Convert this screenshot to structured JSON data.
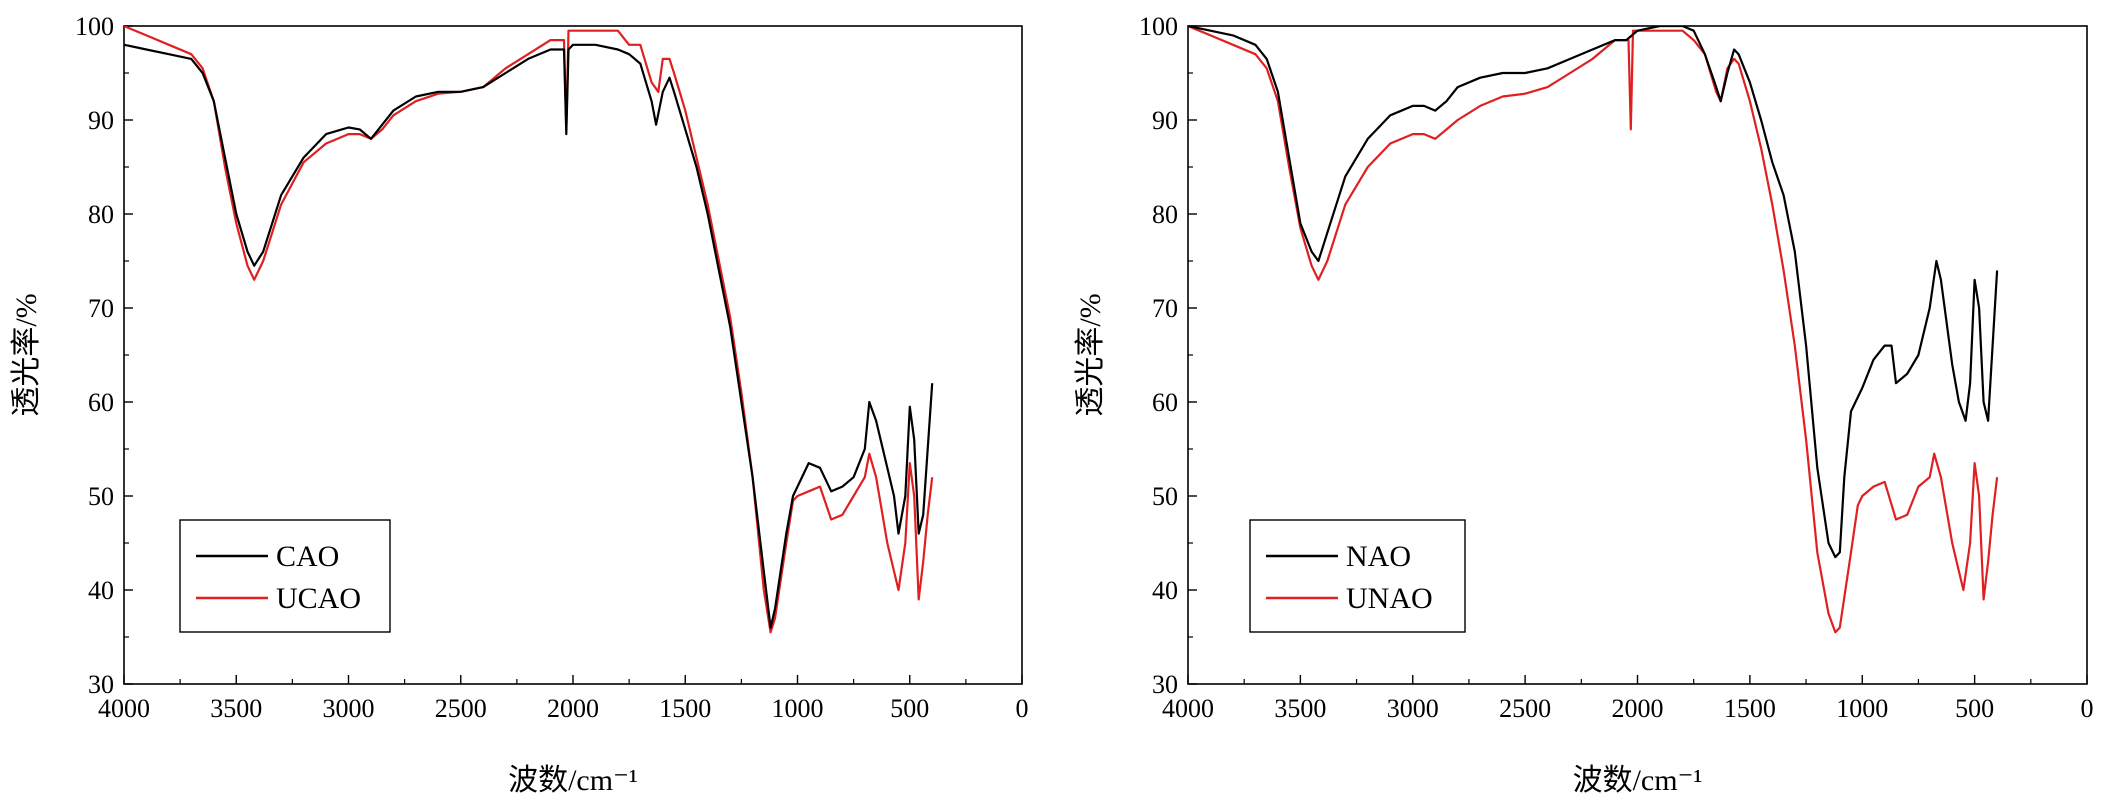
{
  "chart_data": [
    {
      "type": "line",
      "xlabel": "波数/cm⁻¹",
      "ylabel": "透光率/%",
      "xlim": [
        4000,
        0
      ],
      "ylim": [
        30,
        100
      ],
      "xticks": [
        "4000",
        "3500",
        "3000",
        "2500",
        "2000",
        "1500",
        "1000",
        "500",
        "0"
      ],
      "yticks": [
        "30",
        "40",
        "50",
        "60",
        "70",
        "80",
        "90",
        "100"
      ],
      "legend_position": "bottom-left",
      "series": [
        {
          "name": "CAO",
          "color": "#000000",
          "x": [
            4000,
            3900,
            3800,
            3700,
            3650,
            3600,
            3550,
            3500,
            3450,
            3420,
            3380,
            3300,
            3200,
            3100,
            3000,
            2950,
            2900,
            2850,
            2800,
            2700,
            2600,
            2500,
            2400,
            2300,
            2200,
            2100,
            2040,
            2030,
            2020,
            2000,
            1900,
            1800,
            1750,
            1700,
            1650,
            1630,
            1600,
            1570,
            1550,
            1500,
            1450,
            1400,
            1350,
            1300,
            1250,
            1200,
            1150,
            1120,
            1100,
            1050,
            1020,
            1000,
            950,
            900,
            850,
            800,
            750,
            700,
            680,
            650,
            600,
            570,
            550,
            520,
            500,
            480,
            460,
            440,
            420,
            400
          ],
          "y": [
            98,
            97.5,
            97,
            96.5,
            95,
            92,
            86,
            80,
            76,
            74.5,
            76,
            82,
            86,
            88.5,
            89.2,
            89,
            88,
            89.5,
            91,
            92.5,
            93,
            93,
            93.5,
            95,
            96.5,
            97.5,
            97.5,
            88.5,
            97.5,
            98,
            98,
            97.5,
            97,
            96,
            92,
            89.5,
            93,
            94.5,
            93,
            89,
            85,
            80,
            74,
            68,
            60,
            52,
            42,
            36,
            38,
            46,
            50,
            51,
            53.5,
            53,
            50.5,
            51,
            52,
            55,
            60,
            58,
            53,
            50,
            46,
            50,
            59.5,
            56,
            46,
            48,
            55,
            62
          ]
        },
        {
          "name": "UCAO",
          "color": "#e02020",
          "x": [
            4000,
            3900,
            3800,
            3700,
            3650,
            3600,
            3550,
            3500,
            3450,
            3420,
            3380,
            3300,
            3200,
            3100,
            3000,
            2950,
            2900,
            2850,
            2800,
            2700,
            2600,
            2500,
            2400,
            2300,
            2200,
            2100,
            2040,
            2030,
            2020,
            2000,
            1900,
            1800,
            1750,
            1700,
            1650,
            1620,
            1600,
            1570,
            1550,
            1500,
            1450,
            1400,
            1350,
            1300,
            1250,
            1200,
            1150,
            1120,
            1100,
            1050,
            1020,
            1000,
            950,
            900,
            850,
            800,
            750,
            700,
            680,
            650,
            600,
            570,
            550,
            520,
            500,
            480,
            460,
            440,
            420,
            400
          ],
          "y": [
            100,
            99,
            98,
            97,
            95.5,
            92,
            85,
            79,
            74.5,
            73,
            75,
            81,
            85.5,
            87.5,
            88.5,
            88.5,
            88,
            89,
            90.5,
            92,
            92.8,
            93,
            93.5,
            95.5,
            97,
            98.5,
            98.5,
            89,
            99.5,
            99.5,
            99.5,
            99.5,
            98,
            98,
            94,
            93,
            96.5,
            96.5,
            95,
            91,
            86,
            81,
            75,
            69,
            61,
            52,
            40,
            35.5,
            37,
            45,
            49.5,
            50,
            50.5,
            51,
            47.5,
            48,
            50,
            52,
            54.5,
            52,
            45,
            42,
            40,
            45,
            53.5,
            50,
            39,
            43,
            48,
            52
          ]
        }
      ]
    },
    {
      "type": "line",
      "xlabel": "波数/cm⁻¹",
      "ylabel": "透光率/%",
      "xlim": [
        4000,
        0
      ],
      "ylim": [
        30,
        100
      ],
      "xticks": [
        "4000",
        "3500",
        "3000",
        "2500",
        "2000",
        "1500",
        "1000",
        "500",
        "0"
      ],
      "yticks": [
        "30",
        "40",
        "50",
        "60",
        "70",
        "80",
        "90",
        "100"
      ],
      "legend_position": "bottom-left",
      "series": [
        {
          "name": "NAO",
          "color": "#000000",
          "x": [
            4000,
            3900,
            3800,
            3700,
            3650,
            3600,
            3550,
            3500,
            3450,
            3420,
            3380,
            3300,
            3200,
            3100,
            3000,
            2950,
            2900,
            2850,
            2800,
            2700,
            2600,
            2500,
            2400,
            2300,
            2200,
            2100,
            2050,
            2000,
            1900,
            1800,
            1750,
            1700,
            1650,
            1630,
            1600,
            1570,
            1550,
            1500,
            1450,
            1400,
            1350,
            1300,
            1250,
            1200,
            1150,
            1120,
            1100,
            1080,
            1050,
            1000,
            950,
            900,
            870,
            850,
            800,
            750,
            700,
            670,
            650,
            600,
            570,
            540,
            520,
            500,
            480,
            460,
            440,
            420,
            400
          ],
          "y": [
            100,
            99.5,
            99,
            98,
            96.5,
            93,
            86,
            79,
            76,
            75,
            78,
            84,
            88,
            90.5,
            91.5,
            91.5,
            91,
            92,
            93.5,
            94.5,
            95,
            95,
            95.5,
            96.5,
            97.5,
            98.5,
            98.5,
            99.5,
            100,
            100,
            99.5,
            97,
            93.5,
            92,
            95,
            97.5,
            97,
            94,
            90,
            85.5,
            82,
            76,
            66,
            53,
            45,
            43.5,
            44,
            52,
            59,
            61.5,
            64.5,
            66,
            66,
            62,
            63,
            65,
            70,
            75,
            73,
            64,
            60,
            58,
            62,
            73,
            70,
            60,
            58,
            66,
            74
          ]
        },
        {
          "name": "UNAO",
          "color": "#e02020",
          "x": [
            4000,
            3900,
            3800,
            3700,
            3650,
            3600,
            3550,
            3500,
            3450,
            3420,
            3380,
            3300,
            3200,
            3100,
            3000,
            2950,
            2900,
            2850,
            2800,
            2700,
            2600,
            2500,
            2400,
            2300,
            2200,
            2100,
            2040,
            2030,
            2020,
            2000,
            1900,
            1800,
            1750,
            1700,
            1650,
            1630,
            1600,
            1570,
            1550,
            1500,
            1450,
            1400,
            1350,
            1300,
            1250,
            1200,
            1150,
            1120,
            1100,
            1050,
            1020,
            1000,
            950,
            900,
            850,
            800,
            750,
            700,
            680,
            650,
            600,
            570,
            550,
            520,
            500,
            480,
            460,
            440,
            420,
            400
          ],
          "y": [
            100,
            99,
            98,
            97,
            95.5,
            92,
            85,
            78.5,
            74.5,
            73,
            75,
            81,
            85,
            87.5,
            88.5,
            88.5,
            88,
            89,
            90,
            91.5,
            92.5,
            92.8,
            93.5,
            95,
            96.5,
            98.5,
            98.5,
            89,
            99.5,
            99.5,
            99.5,
            99.5,
            98.5,
            97,
            93,
            92,
            95.5,
            96.5,
            96,
            92,
            87,
            81,
            74,
            66,
            56,
            44,
            37.5,
            35.5,
            36,
            44,
            49,
            50,
            51,
            51.5,
            47.5,
            48,
            51,
            52,
            54.5,
            52,
            45,
            42,
            40,
            45,
            53.5,
            50,
            39,
            43,
            48,
            52
          ]
        }
      ]
    }
  ]
}
